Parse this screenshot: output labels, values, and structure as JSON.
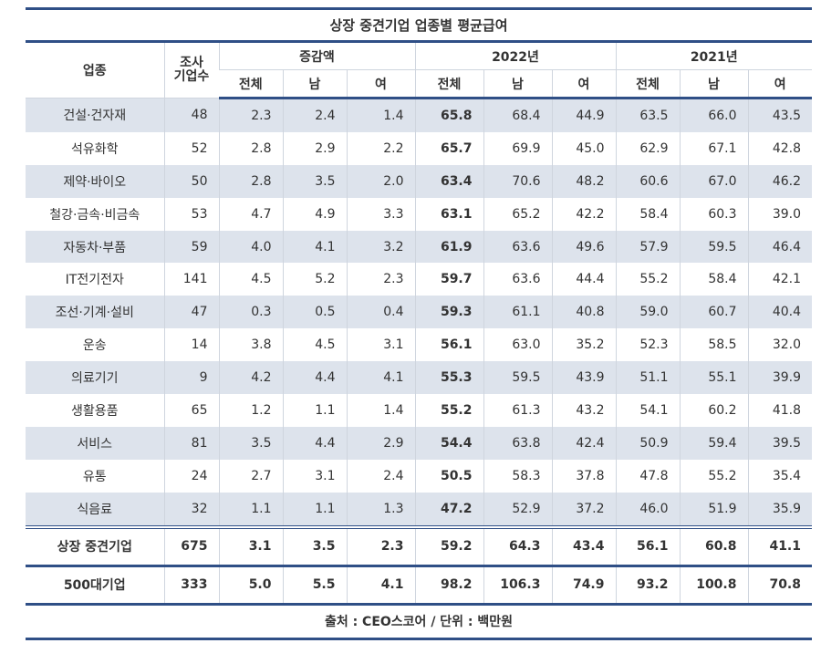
{
  "table": {
    "title": "상장 중견기업 업종별 평균급여",
    "columns": {
      "industry": "업종",
      "count": [
        "조사",
        "기업수"
      ],
      "groups": [
        "증감액",
        "2022년",
        "2021년"
      ],
      "sub": [
        "전체",
        "남",
        "여"
      ]
    },
    "rows": [
      [
        "건설·건자재",
        "48",
        "2.3",
        "2.4",
        "1.4",
        "65.8",
        "68.4",
        "44.9",
        "63.5",
        "66.0",
        "43.5"
      ],
      [
        "석유화학",
        "52",
        "2.8",
        "2.9",
        "2.2",
        "65.7",
        "69.9",
        "45.0",
        "62.9",
        "67.1",
        "42.8"
      ],
      [
        "제약·바이오",
        "50",
        "2.8",
        "3.5",
        "2.0",
        "63.4",
        "70.6",
        "48.2",
        "60.6",
        "67.0",
        "46.2"
      ],
      [
        "철강·금속·비금속",
        "53",
        "4.7",
        "4.9",
        "3.3",
        "63.1",
        "65.2",
        "42.2",
        "58.4",
        "60.3",
        "39.0"
      ],
      [
        "자동차·부품",
        "59",
        "4.0",
        "4.1",
        "3.2",
        "61.9",
        "63.6",
        "49.6",
        "57.9",
        "59.5",
        "46.4"
      ],
      [
        "IT전기전자",
        "141",
        "4.5",
        "5.2",
        "2.3",
        "59.7",
        "63.6",
        "44.4",
        "55.2",
        "58.4",
        "42.1"
      ],
      [
        "조선·기계·설비",
        "47",
        "0.3",
        "0.5",
        "0.4",
        "59.3",
        "61.1",
        "40.8",
        "59.0",
        "60.7",
        "40.4"
      ],
      [
        "운송",
        "14",
        "3.8",
        "4.5",
        "3.1",
        "56.1",
        "63.0",
        "35.2",
        "52.3",
        "58.5",
        "32.0"
      ],
      [
        "의료기기",
        "9",
        "4.2",
        "4.4",
        "4.1",
        "55.3",
        "59.5",
        "43.9",
        "51.1",
        "55.1",
        "39.9"
      ],
      [
        "생활용품",
        "65",
        "1.2",
        "1.1",
        "1.4",
        "55.2",
        "61.3",
        "43.2",
        "54.1",
        "60.2",
        "41.8"
      ],
      [
        "서비스",
        "81",
        "3.5",
        "4.4",
        "2.9",
        "54.4",
        "63.8",
        "42.4",
        "50.9",
        "59.4",
        "39.5"
      ],
      [
        "유통",
        "24",
        "2.7",
        "3.1",
        "2.4",
        "50.5",
        "58.3",
        "37.8",
        "47.8",
        "55.2",
        "35.4"
      ],
      [
        "식음료",
        "32",
        "1.1",
        "1.1",
        "1.3",
        "47.2",
        "52.9",
        "37.2",
        "46.0",
        "51.9",
        "35.9"
      ]
    ],
    "summary": [
      [
        "상장 중견기업",
        "675",
        "3.1",
        "3.5",
        "2.3",
        "59.2",
        "64.3",
        "43.4",
        "56.1",
        "60.8",
        "41.1"
      ],
      [
        "500대기업",
        "333",
        "5.0",
        "5.5",
        "4.1",
        "98.2",
        "106.3",
        "74.9",
        "93.2",
        "100.8",
        "70.8"
      ]
    ],
    "footer": "출처 : CEO스코어 / 단위 : 백만원"
  }
}
